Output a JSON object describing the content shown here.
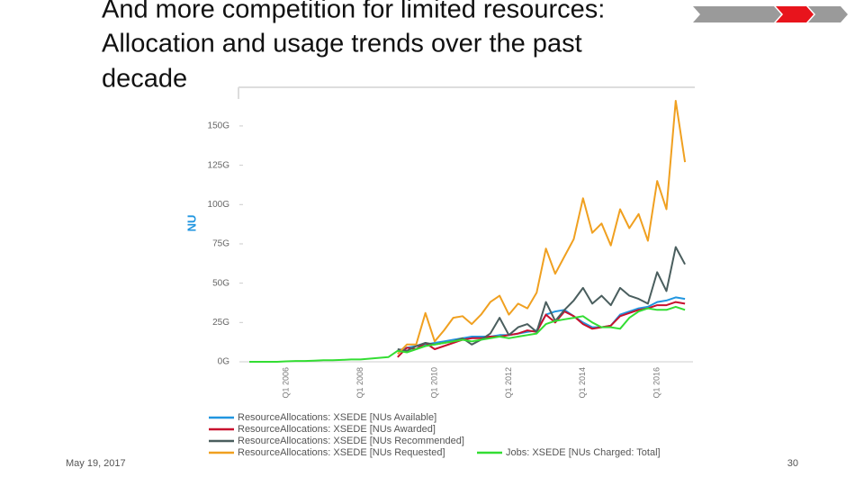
{
  "slide": {
    "title_lines": [
      "And more competition for limited resources:",
      "Allocation and usage trends over the past",
      "decade"
    ],
    "date": "May 19, 2017",
    "page_number": "30"
  },
  "chart_data": {
    "type": "line",
    "y_label": "NU",
    "categories": [
      null,
      null,
      null,
      null,
      "Q1 2006",
      null,
      null,
      null,
      null,
      null,
      null,
      null,
      "Q1 2008",
      null,
      null,
      null,
      null,
      null,
      null,
      null,
      "Q1 2010",
      null,
      null,
      null,
      null,
      null,
      null,
      null,
      "Q1 2012",
      null,
      null,
      null,
      null,
      null,
      null,
      null,
      "Q1 2014",
      null,
      null,
      null,
      null,
      null,
      null,
      null,
      "Q1 2016",
      null,
      null,
      null
    ],
    "ylim": [
      0,
      172
    ],
    "yticks": [
      {
        "value": 0,
        "label": "0G"
      },
      {
        "value": 25,
        "label": "25G"
      },
      {
        "value": 50,
        "label": "50G"
      },
      {
        "value": 75,
        "label": "75G"
      },
      {
        "value": 100,
        "label": "100G"
      },
      {
        "value": 125,
        "label": "125G"
      },
      {
        "value": 150,
        "label": "150G"
      }
    ],
    "series": [
      {
        "name": "ResourceAllocations: XSEDE [NUs Available]",
        "color": "#2196e0",
        "values": [
          null,
          null,
          null,
          null,
          null,
          null,
          null,
          null,
          null,
          null,
          null,
          null,
          null,
          null,
          null,
          null,
          7,
          9,
          10,
          11,
          12,
          13,
          14,
          15,
          16,
          16,
          16,
          17,
          17,
          18,
          19,
          20,
          30,
          32,
          33,
          29,
          25,
          22,
          22,
          23,
          30,
          32,
          34,
          35,
          38,
          39,
          41,
          40
        ]
      },
      {
        "name": "ResourceAllocations: XSEDE [NUs Awarded]",
        "color": "#c8102e",
        "values": [
          null,
          null,
          null,
          null,
          null,
          null,
          null,
          null,
          null,
          null,
          null,
          null,
          null,
          null,
          null,
          null,
          3,
          9,
          8,
          12,
          8,
          10,
          12,
          14,
          15,
          15,
          16,
          16,
          17,
          18,
          20,
          19,
          30,
          25,
          32,
          29,
          24,
          21,
          22,
          23,
          29,
          31,
          33,
          34,
          36,
          36,
          38,
          37
        ]
      },
      {
        "name": "ResourceAllocations: XSEDE [NUs Recommended]",
        "color": "#4a5e5e",
        "values": [
          null,
          null,
          null,
          null,
          null,
          null,
          null,
          null,
          null,
          null,
          null,
          null,
          null,
          null,
          null,
          null,
          8,
          7,
          10,
          12,
          11,
          12,
          13,
          15,
          11,
          14,
          18,
          28,
          17,
          22,
          24,
          19,
          38,
          26,
          33,
          39,
          47,
          37,
          42,
          36,
          47,
          42,
          40,
          37,
          57,
          45,
          73,
          62
        ]
      },
      {
        "name": "ResourceAllocations: XSEDE [NUs Requested]",
        "color": "#f0a020",
        "values": [
          null,
          null,
          null,
          null,
          null,
          null,
          null,
          null,
          null,
          null,
          null,
          null,
          null,
          null,
          null,
          null,
          5,
          11,
          11,
          31,
          13,
          20,
          28,
          29,
          24,
          30,
          38,
          42,
          30,
          37,
          34,
          44,
          72,
          56,
          67,
          78,
          104,
          82,
          88,
          74,
          97,
          85,
          94,
          77,
          115,
          97,
          166,
          127
        ]
      },
      {
        "name": "Jobs: XSEDE [NUs Charged: Total]",
        "color": "#33dd33",
        "values": [
          0,
          0,
          0,
          0,
          0.3,
          0.5,
          0.5,
          0.7,
          1,
          1,
          1.2,
          1.5,
          1.5,
          2,
          2.5,
          3,
          7,
          6,
          8,
          10,
          11,
          12,
          13,
          14,
          13,
          14,
          15,
          16,
          15,
          16,
          17,
          18,
          24,
          26,
          27,
          28,
          29,
          25,
          22,
          22,
          21,
          28,
          32,
          34,
          33,
          33,
          35,
          33
        ]
      }
    ]
  }
}
